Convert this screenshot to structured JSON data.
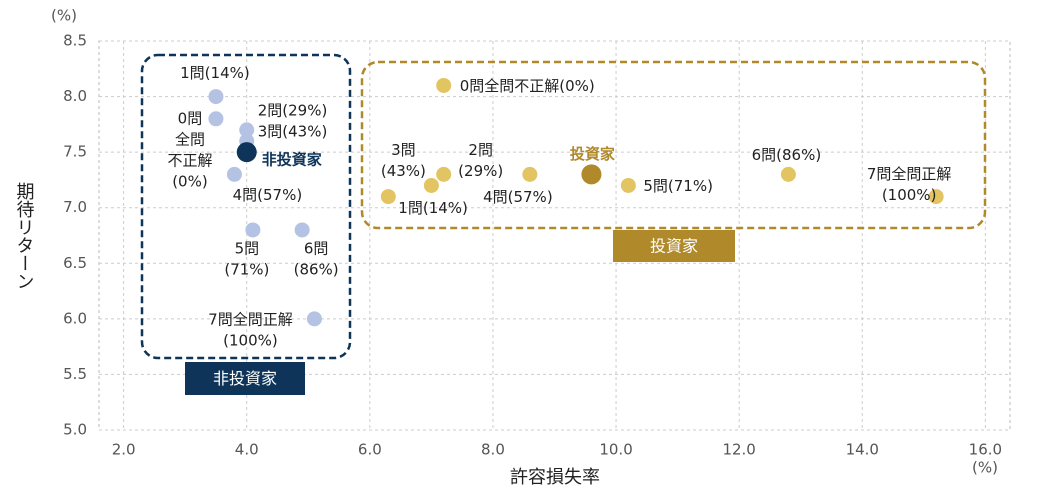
{
  "chart_data": {
    "type": "scatter",
    "x_label": "許容損失率",
    "y_label": "期待リターン",
    "x_unit": "(%)",
    "y_unit": "(%)",
    "xlim": [
      1.6,
      16.4
    ],
    "ylim": [
      5.0,
      8.5
    ],
    "xticks": [
      {
        "value": 2,
        "label": "2.0"
      },
      {
        "value": 4,
        "label": "4.0"
      },
      {
        "value": 6,
        "label": "6.0"
      },
      {
        "value": 8,
        "label": "8.0"
      },
      {
        "value": 10,
        "label": "10.0"
      },
      {
        "value": 12,
        "label": "12.0"
      },
      {
        "value": 14,
        "label": "14.0"
      },
      {
        "value": 16,
        "label": "16.0"
      }
    ],
    "yticks": [
      {
        "value": 5,
        "label": "5.0"
      },
      {
        "value": 5.5,
        "label": "5.5"
      },
      {
        "value": 6,
        "label": "6.0"
      },
      {
        "value": 6.5,
        "label": "6.5"
      },
      {
        "value": 7,
        "label": "7.0"
      },
      {
        "value": 7.5,
        "label": "7.5"
      },
      {
        "value": 8,
        "label": "8.0"
      },
      {
        "value": 8.5,
        "label": "8.5"
      }
    ],
    "grid": true,
    "series": [
      {
        "name": "非投資家",
        "color": "#b4c3e3",
        "box_color": "#0e3459",
        "x": [
          3.5,
          3.5,
          4.0,
          4.0,
          3.8,
          4.1,
          4.9,
          5.1
        ],
        "y": [
          8.0,
          7.8,
          7.7,
          7.6,
          7.3,
          6.8,
          6.8,
          6.0
        ],
        "labels": [
          [
            "1問(14%)"
          ],
          [
            "0問",
            "全問",
            "不正解",
            "(0%)"
          ],
          [
            "2問(29%)"
          ],
          [
            "3問(43%)"
          ],
          [
            "4問(57%)"
          ],
          [
            "5問",
            "(71%)"
          ],
          [
            "6問",
            "(86%)"
          ],
          [
            "7問全問正解",
            "(100%)"
          ]
        ],
        "average": {
          "x": 4.0,
          "y": 7.5,
          "color": "#0e3459"
        }
      },
      {
        "name": "投資家",
        "color": "#e3c462",
        "box_color": "#b08a2a",
        "x": [
          7.2,
          6.3,
          7.2,
          7.0,
          8.6,
          10.2,
          12.8,
          15.2
        ],
        "y": [
          8.1,
          7.1,
          7.3,
          7.2,
          7.3,
          7.2,
          7.3,
          7.1
        ],
        "labels": [
          [
            "0問全問不正解(0%)"
          ],
          [
            "1問(14%)"
          ],
          [
            "2問",
            "(29%)"
          ],
          [
            "3問",
            "(43%)"
          ],
          [
            "4問(57%)"
          ],
          [
            "5問(71%)"
          ],
          [
            "6問(86%)"
          ],
          [
            "7問全問正解",
            "(100%)"
          ]
        ],
        "average": {
          "x": 9.6,
          "y": 7.3,
          "color": "#b08a2a"
        }
      }
    ]
  }
}
